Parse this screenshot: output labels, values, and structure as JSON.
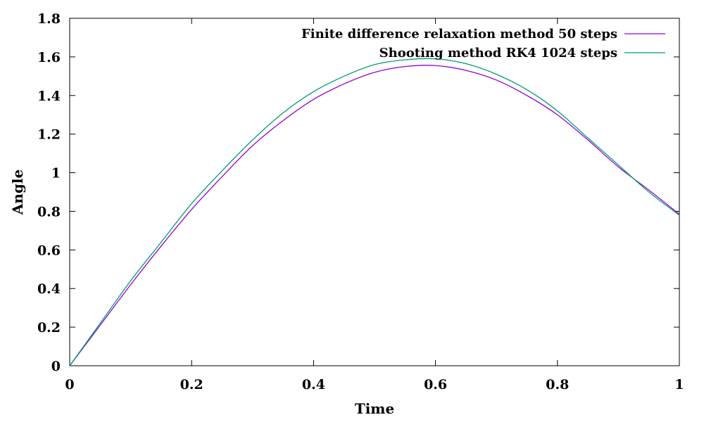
{
  "chart_data": {
    "type": "line",
    "title": "",
    "xlabel": "Time",
    "ylabel": "Angle",
    "xlim": [
      0,
      1
    ],
    "ylim": [
      0,
      1.8
    ],
    "xticks": [
      0,
      0.2,
      0.4,
      0.6,
      0.8,
      1
    ],
    "xtick_labels": [
      "0",
      "0.2",
      "0.4",
      "0.6",
      "0.8",
      "1"
    ],
    "yticks": [
      0,
      0.2,
      0.4,
      0.6,
      0.8,
      1,
      1.2,
      1.4,
      1.6,
      1.8
    ],
    "ytick_labels": [
      "0",
      "0.2",
      "0.4",
      "0.6",
      "0.8",
      "1",
      "1.2",
      "1.4",
      "1.6",
      "1.8"
    ],
    "grid": false,
    "legend_position": "top-right",
    "series": [
      {
        "name": "Finite difference relaxation method 50 steps",
        "color": "#9400d3",
        "x": [
          0,
          0.05,
          0.1,
          0.15,
          0.2,
          0.25,
          0.3,
          0.35,
          0.4,
          0.45,
          0.5,
          0.55,
          0.6,
          0.65,
          0.7,
          0.75,
          0.8,
          0.85,
          0.9,
          0.95,
          1
        ],
        "y": [
          0,
          0.21,
          0.42,
          0.62,
          0.81,
          0.98,
          1.14,
          1.27,
          1.38,
          1.46,
          1.52,
          1.55,
          1.555,
          1.53,
          1.48,
          1.4,
          1.3,
          1.17,
          1.03,
          0.91,
          0.785
        ]
      },
      {
        "name": "Shooting method RK4 1024 steps",
        "color": "#009e73",
        "x": [
          0,
          0.05,
          0.1,
          0.15,
          0.2,
          0.25,
          0.3,
          0.35,
          0.4,
          0.45,
          0.5,
          0.55,
          0.6,
          0.65,
          0.7,
          0.75,
          0.8,
          0.85,
          0.9,
          0.95,
          1
        ],
        "y": [
          0,
          0.22,
          0.44,
          0.64,
          0.84,
          1.01,
          1.17,
          1.31,
          1.42,
          1.5,
          1.56,
          1.585,
          1.59,
          1.565,
          1.51,
          1.43,
          1.32,
          1.18,
          1.04,
          0.9,
          0.78
        ]
      }
    ]
  }
}
